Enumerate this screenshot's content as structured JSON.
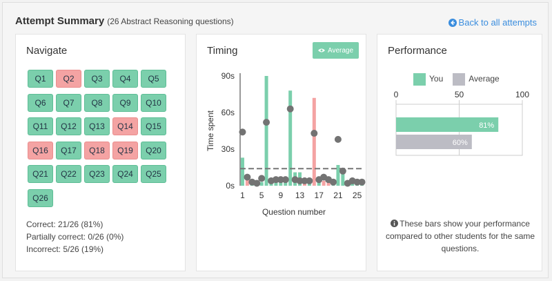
{
  "header": {
    "title": "Attempt Summary",
    "subtitle": "(26 Abstract Reasoning questions)",
    "back_label": "Back to all attempts"
  },
  "navigate": {
    "title": "Navigate",
    "questions": [
      {
        "label": "Q1",
        "status": "correct"
      },
      {
        "label": "Q2",
        "status": "incorrect"
      },
      {
        "label": "Q3",
        "status": "correct"
      },
      {
        "label": "Q4",
        "status": "correct"
      },
      {
        "label": "Q5",
        "status": "correct"
      },
      {
        "label": "Q6",
        "status": "correct"
      },
      {
        "label": "Q7",
        "status": "correct"
      },
      {
        "label": "Q8",
        "status": "correct"
      },
      {
        "label": "Q9",
        "status": "correct"
      },
      {
        "label": "Q10",
        "status": "correct"
      },
      {
        "label": "Q11",
        "status": "correct"
      },
      {
        "label": "Q12",
        "status": "correct"
      },
      {
        "label": "Q13",
        "status": "correct"
      },
      {
        "label": "Q14",
        "status": "incorrect"
      },
      {
        "label": "Q15",
        "status": "correct"
      },
      {
        "label": "Q16",
        "status": "incorrect"
      },
      {
        "label": "Q17",
        "status": "correct"
      },
      {
        "label": "Q18",
        "status": "incorrect"
      },
      {
        "label": "Q19",
        "status": "incorrect"
      },
      {
        "label": "Q20",
        "status": "correct"
      },
      {
        "label": "Q21",
        "status": "correct"
      },
      {
        "label": "Q22",
        "status": "correct"
      },
      {
        "label": "Q23",
        "status": "correct"
      },
      {
        "label": "Q24",
        "status": "correct"
      },
      {
        "label": "Q25",
        "status": "correct"
      },
      {
        "label": "Q26",
        "status": "correct"
      }
    ],
    "stats": {
      "correct": "Correct: 21/26 (81%)",
      "partial": "Partially correct: 0/26 (0%)",
      "incorrect": "Incorrect: 5/26 (19%)"
    }
  },
  "timing": {
    "title": "Timing",
    "average_button": "Average"
  },
  "performance": {
    "title": "Performance",
    "legend_you": "You",
    "legend_average": "Average",
    "note": "These bars show your performance compared to other students for the same questions."
  },
  "colors": {
    "correct": "#7bcfac",
    "incorrect": "#f4a3a3",
    "average": "#bcbcc4",
    "dot": "#737373",
    "link": "#3a8dde"
  },
  "chart_data": [
    {
      "type": "bar",
      "title": "",
      "xlabel": "Question number",
      "ylabel": "Time spent",
      "x_ticks": [
        1,
        5,
        9,
        13,
        17,
        21,
        25
      ],
      "y_ticks": [
        "0s",
        "30s",
        "60s",
        "90s"
      ],
      "ylim": [
        0,
        90
      ],
      "categories": [
        1,
        2,
        3,
        4,
        5,
        6,
        7,
        8,
        9,
        10,
        11,
        12,
        13,
        14,
        15,
        16,
        17,
        18,
        19,
        20,
        21,
        22,
        23,
        24,
        25,
        26
      ],
      "series": [
        {
          "values": [
            23,
            6,
            3,
            2,
            3,
            90,
            4,
            3,
            3,
            5,
            78,
            11,
            11,
            5,
            4,
            72,
            5,
            4,
            3,
            3,
            17,
            14,
            3,
            2,
            3,
            2
          ]
        },
        {
          "values": [
            44,
            7,
            3,
            2,
            6,
            52,
            4,
            5,
            5,
            5,
            63,
            5,
            4,
            4,
            4,
            43,
            5,
            7,
            5,
            3,
            38,
            12,
            2,
            4,
            3,
            3
          ]
        }
      ],
      "average_line": 14,
      "series_status": [
        "correct",
        "incorrect",
        "correct",
        "correct",
        "correct",
        "correct",
        "correct",
        "correct",
        "correct",
        "correct",
        "correct",
        "correct",
        "correct",
        "incorrect",
        "correct",
        "incorrect",
        "correct",
        "incorrect",
        "incorrect",
        "correct",
        "correct",
        "correct",
        "correct",
        "correct",
        "correct",
        "correct"
      ]
    },
    {
      "type": "bar",
      "orientation": "horizontal",
      "x_ticks": [
        0,
        50,
        100
      ],
      "xlim": [
        0,
        100
      ],
      "series": [
        {
          "name": "You",
          "values": [
            81
          ],
          "label": "81%"
        },
        {
          "name": "Average",
          "values": [
            60
          ],
          "label": "60%"
        }
      ]
    }
  ]
}
